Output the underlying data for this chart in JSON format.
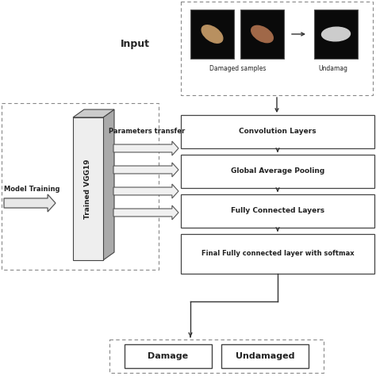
{
  "bg_color": "#ffffff",
  "input_label": "Input",
  "model_training_label": "Model Training",
  "vgg19_label": "Trained VGG19",
  "params_transfer_label": "Parameters transfer",
  "layers": [
    "Convolution Layers",
    "Global Average Pooling",
    "Fully Connected Layers",
    "Final Fully connected layer with softmax"
  ],
  "output_boxes": [
    "Damage",
    "Undamaged"
  ],
  "damaged_label": "Damaged samples",
  "undamaged_label": "Undamag",
  "arrow_color": "#333333",
  "box_edge_color": "#444444",
  "dashed_box_color": "#888888",
  "fig_width": 4.74,
  "fig_height": 4.74,
  "dpi": 100
}
